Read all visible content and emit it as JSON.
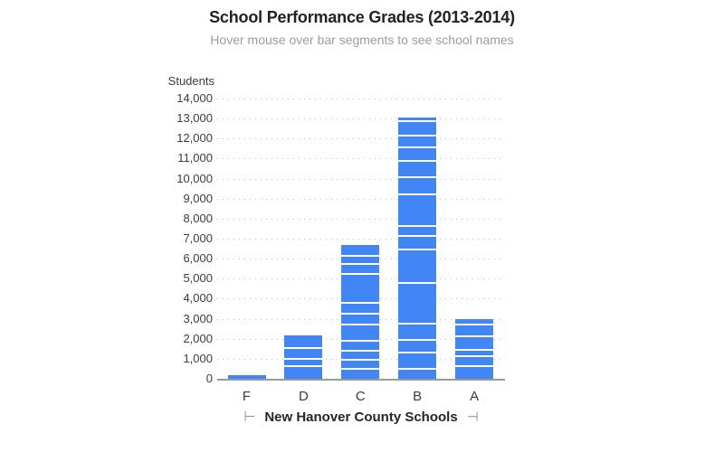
{
  "chart_data": {
    "type": "bar",
    "stacked": true,
    "title": "School Performance Grades (2013-2014)",
    "subtitle": "Hover mouse over bar segments to see school names",
    "ylabel": "Students",
    "xlabel": "New Hanover County Schools",
    "x_axis_end_caps": {
      "left": "⊢",
      "right": "⊣"
    },
    "ylim": [
      0,
      14000
    ],
    "y_tick_interval": 1000,
    "grid": "dotted-horizontal",
    "legend": "none",
    "bar_color": "#4285f4",
    "segment_gap_color": "#ffffff",
    "y_ticks": [
      {
        "value": 0,
        "label": "0"
      },
      {
        "value": 1000,
        "label": "1,000"
      },
      {
        "value": 2000,
        "label": "2,000"
      },
      {
        "value": 3000,
        "label": "3,000"
      },
      {
        "value": 4000,
        "label": "4,000"
      },
      {
        "value": 5000,
        "label": "5,000"
      },
      {
        "value": 6000,
        "label": "6,000"
      },
      {
        "value": 7000,
        "label": "7,000"
      },
      {
        "value": 8000,
        "label": "8,000"
      },
      {
        "value": 9000,
        "label": "9,000"
      },
      {
        "value": 10000,
        "label": "10,000"
      },
      {
        "value": 11000,
        "label": "11,000"
      },
      {
        "value": 12000,
        "label": "12,000"
      },
      {
        "value": 13000,
        "label": "13,000"
      },
      {
        "value": 14000,
        "label": "14,000"
      }
    ],
    "categories": [
      "F",
      "D",
      "C",
      "B",
      "A"
    ],
    "segments_order": "bottom-to-top",
    "bars": [
      {
        "category": "F",
        "total": 200,
        "segments": [
          200
        ]
      },
      {
        "category": "D",
        "total": 2150,
        "segments": [
          585,
          365,
          545,
          655
        ]
      },
      {
        "category": "C",
        "total": 6670,
        "segments": [
          430,
          475,
          445,
          495,
          800,
          585,
          540,
          1430,
          495,
          405,
          570
        ]
      },
      {
        "category": "B",
        "total": 13050,
        "segments": [
          460,
          825,
          630,
          790,
          2030,
          1685,
          655,
          530,
          1580,
          860,
          780,
          695,
          600,
          720,
          210
        ]
      },
      {
        "category": "A",
        "total": 3000,
        "segments": [
          575,
          510,
          295,
          690,
          595,
          335
        ]
      }
    ]
  }
}
